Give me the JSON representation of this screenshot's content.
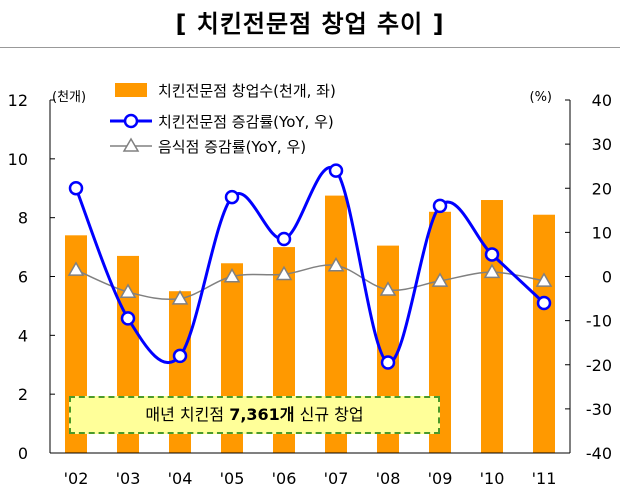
{
  "title": "[ 치킨전문점 창업 추이 ]",
  "chart_data": {
    "type": "bar",
    "categories": [
      "'02",
      "'03",
      "'04",
      "'05",
      "'06",
      "'07",
      "'08",
      "'09",
      "'10",
      "'11"
    ],
    "series": [
      {
        "name": "치킨전문점 창업수(천개, 좌)",
        "type": "bar",
        "axis": "left",
        "color": "#ff9900",
        "values": [
          7.4,
          6.7,
          5.5,
          6.45,
          7.0,
          8.75,
          7.05,
          8.2,
          8.6,
          8.1
        ]
      },
      {
        "name": "치킨전문점 증감률(YoY, 우)",
        "type": "line",
        "axis": "right",
        "color": "#0000ff",
        "values": [
          20,
          -9.5,
          -18,
          18,
          8.5,
          24,
          -19.5,
          16,
          5,
          -6
        ]
      },
      {
        "name": "음식점 증감률(YoY, 우)",
        "type": "line",
        "axis": "right",
        "color": "#808080",
        "values": [
          1.5,
          -3.5,
          -5,
          0,
          0.5,
          2.5,
          -3,
          -1,
          1,
          -1
        ]
      }
    ],
    "left_axis": {
      "unit": "(천개)",
      "ylim": [
        0,
        12
      ],
      "ticks": [
        "0",
        "2",
        "4",
        "6",
        "8",
        "10",
        "12"
      ]
    },
    "right_axis": {
      "unit": "(%)",
      "ylim": [
        -40,
        40
      ],
      "ticks": [
        "-40",
        "-30",
        "-20",
        "-10",
        "0",
        "10",
        "20",
        "30",
        "40"
      ]
    },
    "legend_placement": "top",
    "grid": false
  },
  "annotation": {
    "prefix": "매년 치킨점 ",
    "highlight": "7,361개",
    "suffix": " 신규 창업"
  }
}
